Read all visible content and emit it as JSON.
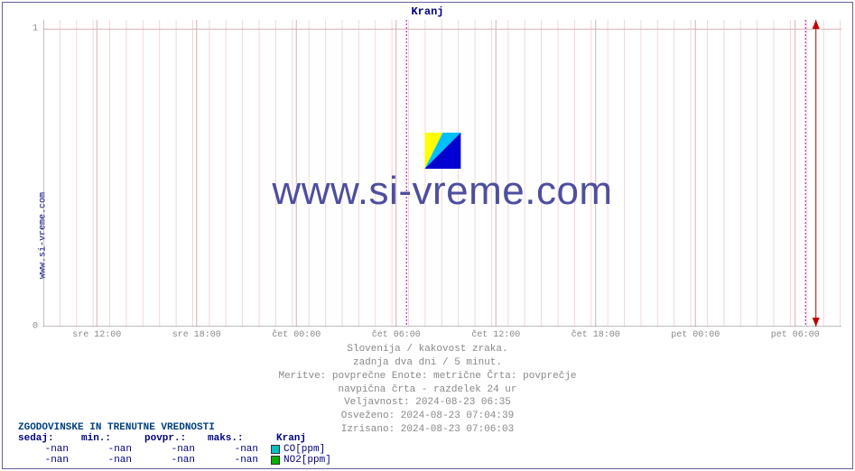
{
  "chart": {
    "type": "line",
    "title": "Kranj",
    "vertical_label": "www.si-vreme.com",
    "title_color": "#000080",
    "text_color": "#888888",
    "border_color": "#6060a0",
    "background_color": "#ffffff",
    "plot_background": "#ffffff",
    "axis_color": "#808080",
    "gridline_color": "#f0d8d8",
    "major_gridline_color": "#d8b0b0",
    "vrule_color": "#b000b0",
    "now_arrow_color": "#c00000",
    "y_ticks": [
      {
        "pos": 1.0,
        "label": "0"
      },
      {
        "pos": 0.03,
        "label": "1"
      }
    ],
    "x_ticks": [
      {
        "pos": 0.067,
        "label": "sre 12:00",
        "major": false
      },
      {
        "pos": 0.192,
        "label": "sre 18:00",
        "major": false
      },
      {
        "pos": 0.317,
        "label": "čet 00:00",
        "major": false
      },
      {
        "pos": 0.442,
        "label": "čet 06:00",
        "major": false
      },
      {
        "pos": 0.567,
        "label": "čet 12:00",
        "major": false
      },
      {
        "pos": 0.692,
        "label": "čet 18:00",
        "major": false
      },
      {
        "pos": 0.817,
        "label": "pet 00:00",
        "major": false
      },
      {
        "pos": 0.942,
        "label": "pet 06:00",
        "major": false
      }
    ],
    "x_minor_step": 0.0208,
    "vrules": [
      0.455,
      0.955
    ],
    "now_marker": 0.968,
    "watermark_text": "www.si-vreme.com"
  },
  "footer": {
    "line1": "Slovenija / kakovost zraka.",
    "line2": "zadnja dva dni / 5 minut.",
    "line3": "Meritve: povprečne  Enote: metrične  Črta: povprečje",
    "line4": "navpična črta - razdelek 24 ur",
    "line5": "Veljavnost: 2024-08-23 06:35",
    "line6": "Osveženo: 2024-08-23 07:04:39",
    "line7": "Izrisano: 2024-08-23 07:06:03"
  },
  "legend": {
    "title": "ZGODOVINSKE IN TRENUTNE VREDNOSTI",
    "columns": [
      "sedaj:",
      "min.:",
      "povpr.:",
      "maks.:"
    ],
    "location": "Kranj",
    "location_color": "#000080",
    "rows": [
      {
        "values": [
          "-nan",
          "-nan",
          "-nan",
          "-nan"
        ],
        "series": "CO[ppm]",
        "color": "#00c0c0"
      },
      {
        "values": [
          "-nan",
          "-nan",
          "-nan",
          "-nan"
        ],
        "series": "NO2[ppm]",
        "color": "#00b000"
      }
    ]
  }
}
